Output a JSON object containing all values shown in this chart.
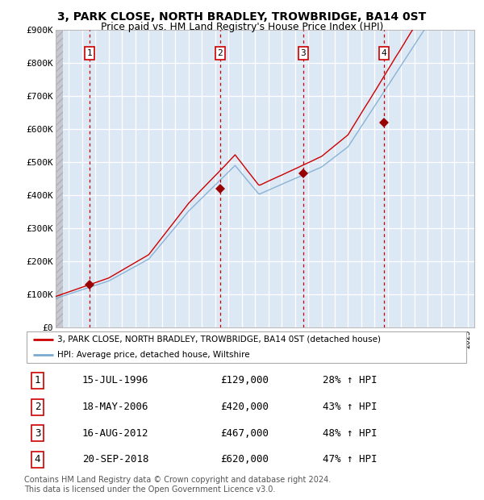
{
  "title1": "3, PARK CLOSE, NORTH BRADLEY, TROWBRIDGE, BA14 0ST",
  "title2": "Price paid vs. HM Land Registry's House Price Index (HPI)",
  "ylim": [
    0,
    900000
  ],
  "yticks": [
    0,
    100000,
    200000,
    300000,
    400000,
    500000,
    600000,
    700000,
    800000,
    900000
  ],
  "ytick_labels": [
    "£0",
    "£100K",
    "£200K",
    "£300K",
    "£400K",
    "£500K",
    "£600K",
    "£700K",
    "£800K",
    "£900K"
  ],
  "xlim_start": 1994.0,
  "xlim_end": 2025.5,
  "sale_dates": [
    1996.54,
    2006.38,
    2012.63,
    2018.72
  ],
  "sale_prices": [
    129000,
    420000,
    467000,
    620000
  ],
  "sale_labels": [
    "1",
    "2",
    "3",
    "4"
  ],
  "red_line_color": "#cc0000",
  "blue_line_color": "#7aaad0",
  "marker_color": "#990000",
  "dashed_line_color": "#cc0000",
  "bg_color": "#dde8f5",
  "grid_color": "#ffffff",
  "legend_entries": [
    "3, PARK CLOSE, NORTH BRADLEY, TROWBRIDGE, BA14 0ST (detached house)",
    "HPI: Average price, detached house, Wiltshire"
  ],
  "table_entries": [
    [
      "1",
      "15-JUL-1996",
      "£129,000",
      "28% ↑ HPI"
    ],
    [
      "2",
      "18-MAY-2006",
      "£420,000",
      "43% ↑ HPI"
    ],
    [
      "3",
      "16-AUG-2012",
      "£467,000",
      "48% ↑ HPI"
    ],
    [
      "4",
      "20-SEP-2018",
      "£620,000",
      "47% ↑ HPI"
    ]
  ],
  "footnote": "Contains HM Land Registry data © Crown copyright and database right 2024.\nThis data is licensed under the Open Government Licence v3.0."
}
